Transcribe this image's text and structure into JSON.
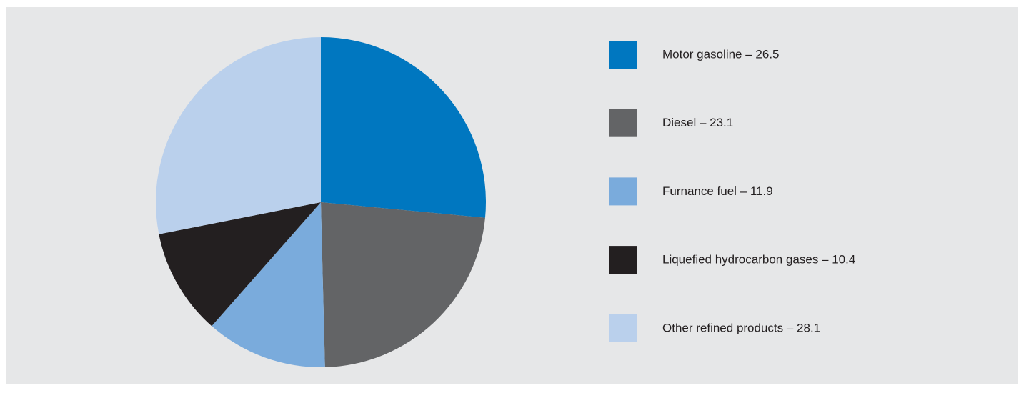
{
  "chart_data": {
    "type": "pie",
    "categories": [
      "Motor gasoline – 26.5",
      "Diesel – 23.1",
      "Furnance fuel – 11.9",
      "Liquefied hydrocarbon gases – 10.4",
      "Other refined products – 28.1"
    ],
    "values": [
      26.5,
      23.1,
      11.9,
      10.4,
      28.1
    ],
    "colors": [
      "#0077c0",
      "#636466",
      "#7aabdc",
      "#231f20",
      "#bad0ec"
    ],
    "legend": "right"
  }
}
